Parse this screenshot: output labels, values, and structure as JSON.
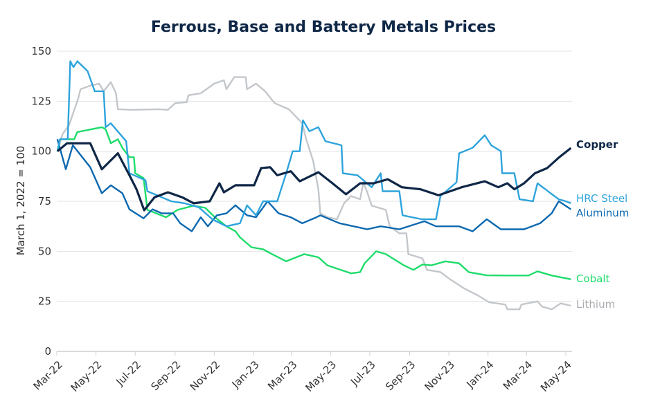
{
  "chart_data": {
    "type": "line",
    "title": "Ferrous, Base and Battery Metals Prices",
    "xlabel": "",
    "ylabel": "March 1, 2022 = 100",
    "ylim": [
      0,
      150
    ],
    "yticks": [
      "0",
      "25",
      "50",
      "75",
      "100",
      "125",
      "150"
    ],
    "xlim": [
      "2022-03-01",
      "2024-05-09"
    ],
    "xticks": [
      {
        "date": "2022-03-01",
        "label": "Mar-22"
      },
      {
        "date": "2022-05-01",
        "label": "May-22"
      },
      {
        "date": "2022-07-01",
        "label": "Jul-22"
      },
      {
        "date": "2022-09-01",
        "label": "Sep-22"
      },
      {
        "date": "2022-11-01",
        "label": "Nov-22"
      },
      {
        "date": "2023-01-01",
        "label": "Jan-23"
      },
      {
        "date": "2023-03-01",
        "label": "Mar-23"
      },
      {
        "date": "2023-05-01",
        "label": "May-23"
      },
      {
        "date": "2023-07-01",
        "label": "Jul-23"
      },
      {
        "date": "2023-09-01",
        "label": "Sep-23"
      },
      {
        "date": "2023-11-01",
        "label": "Nov-23"
      },
      {
        "date": "2024-01-01",
        "label": "Jan-24"
      },
      {
        "date": "2024-03-01",
        "label": "Mar-24"
      },
      {
        "date": "2024-05-01",
        "label": "May-24"
      }
    ],
    "grid": true,
    "legend": "direct labels at right end of lines",
    "series": [
      {
        "name": "Copper",
        "color": "#0f2747",
        "points": [
          [
            "2022-03-02",
            100
          ],
          [
            "2022-03-17",
            104
          ],
          [
            "2022-04-22",
            104
          ],
          [
            "2022-05-10",
            91
          ],
          [
            "2022-06-04",
            99
          ],
          [
            "2022-06-22",
            88
          ],
          [
            "2022-07-03",
            81
          ],
          [
            "2022-07-15",
            70.5
          ],
          [
            "2022-07-31",
            77
          ],
          [
            "2022-08-21",
            79.5
          ],
          [
            "2022-09-12",
            77
          ],
          [
            "2022-09-30",
            74
          ],
          [
            "2022-10-25",
            75
          ],
          [
            "2022-11-09",
            84
          ],
          [
            "2022-11-16",
            79.5
          ],
          [
            "2022-12-04",
            83
          ],
          [
            "2023-01-02",
            83
          ],
          [
            "2023-01-13",
            91.6
          ],
          [
            "2023-01-27",
            92
          ],
          [
            "2023-02-07",
            88
          ],
          [
            "2023-02-28",
            90
          ],
          [
            "2023-03-14",
            85
          ],
          [
            "2023-04-12",
            89.5
          ],
          [
            "2023-05-04",
            84
          ],
          [
            "2023-05-25",
            78.5
          ],
          [
            "2023-06-16",
            84
          ],
          [
            "2023-07-07",
            84
          ],
          [
            "2023-07-29",
            86
          ],
          [
            "2023-08-20",
            82
          ],
          [
            "2023-09-18",
            81
          ],
          [
            "2023-10-16",
            78
          ],
          [
            "2023-11-21",
            82
          ],
          [
            "2023-12-27",
            85
          ],
          [
            "2024-01-17",
            82
          ],
          [
            "2024-01-31",
            84
          ],
          [
            "2024-02-11",
            81
          ],
          [
            "2024-02-26",
            84
          ],
          [
            "2024-03-14",
            89
          ],
          [
            "2024-04-02",
            91.6
          ],
          [
            "2024-04-20",
            96.8
          ],
          [
            "2024-05-09",
            101.6
          ]
        ]
      },
      {
        "name": "HRC Steel",
        "color": "#2ea3dc",
        "points": [
          [
            "2022-03-02",
            100
          ],
          [
            "2022-03-06",
            106
          ],
          [
            "2022-03-18",
            106
          ],
          [
            "2022-03-22",
            145
          ],
          [
            "2022-03-27",
            142
          ],
          [
            "2022-04-02",
            145
          ],
          [
            "2022-04-18",
            140
          ],
          [
            "2022-04-29",
            130
          ],
          [
            "2022-05-13",
            130
          ],
          [
            "2022-05-16",
            112
          ],
          [
            "2022-05-24",
            114
          ],
          [
            "2022-06-17",
            105
          ],
          [
            "2022-06-22",
            89
          ],
          [
            "2022-07-17",
            85.5
          ],
          [
            "2022-07-20",
            80
          ],
          [
            "2022-08-07",
            77.6
          ],
          [
            "2022-08-26",
            75
          ],
          [
            "2022-09-16",
            74
          ],
          [
            "2022-10-08",
            72
          ],
          [
            "2022-10-29",
            66
          ],
          [
            "2022-11-20",
            62.5
          ],
          [
            "2022-12-11",
            64
          ],
          [
            "2022-12-22",
            73
          ],
          [
            "2023-01-05",
            68
          ],
          [
            "2023-01-16",
            75
          ],
          [
            "2023-02-07",
            75
          ],
          [
            "2023-02-21",
            89
          ],
          [
            "2023-03-03",
            100
          ],
          [
            "2023-03-14",
            100
          ],
          [
            "2023-03-19",
            115.5
          ],
          [
            "2023-03-29",
            110
          ],
          [
            "2023-04-12",
            112
          ],
          [
            "2023-04-23",
            105
          ],
          [
            "2023-05-18",
            103
          ],
          [
            "2023-05-20",
            89
          ],
          [
            "2023-06-12",
            88
          ],
          [
            "2023-07-04",
            82
          ],
          [
            "2023-07-18",
            89
          ],
          [
            "2023-07-21",
            80
          ],
          [
            "2023-08-16",
            80
          ],
          [
            "2023-08-21",
            68
          ],
          [
            "2023-09-20",
            66
          ],
          [
            "2023-10-12",
            66
          ],
          [
            "2023-10-19",
            77.6
          ],
          [
            "2023-11-13",
            84.5
          ],
          [
            "2023-11-17",
            99
          ],
          [
            "2023-12-08",
            101.7
          ],
          [
            "2023-12-27",
            108
          ],
          [
            "2024-01-06",
            103
          ],
          [
            "2024-01-21",
            100
          ],
          [
            "2024-01-23",
            89
          ],
          [
            "2024-02-11",
            89
          ],
          [
            "2024-02-19",
            76
          ],
          [
            "2024-03-11",
            75
          ],
          [
            "2024-03-18",
            84
          ],
          [
            "2024-04-05",
            79.6
          ],
          [
            "2024-04-20",
            76
          ],
          [
            "2024-05-01",
            75
          ],
          [
            "2024-05-09",
            74
          ]
        ]
      },
      {
        "name": "Aluminum",
        "color": "#0b68b0",
        "points": [
          [
            "2022-03-02",
            106
          ],
          [
            "2022-03-15",
            91
          ],
          [
            "2022-03-26",
            103
          ],
          [
            "2022-04-22",
            92
          ],
          [
            "2022-05-10",
            79
          ],
          [
            "2022-05-24",
            83
          ],
          [
            "2022-06-11",
            79
          ],
          [
            "2022-06-22",
            71
          ],
          [
            "2022-07-14",
            66.5
          ],
          [
            "2022-07-28",
            71
          ],
          [
            "2022-08-11",
            69
          ],
          [
            "2022-08-29",
            69
          ],
          [
            "2022-09-09",
            64
          ],
          [
            "2022-09-27",
            60
          ],
          [
            "2022-10-11",
            67
          ],
          [
            "2022-10-22",
            62.5
          ],
          [
            "2022-11-05",
            68
          ],
          [
            "2022-11-20",
            69
          ],
          [
            "2022-12-04",
            73
          ],
          [
            "2022-12-22",
            68
          ],
          [
            "2023-01-05",
            67
          ],
          [
            "2023-01-23",
            75
          ],
          [
            "2023-02-09",
            69
          ],
          [
            "2023-02-28",
            67
          ],
          [
            "2023-03-18",
            64
          ],
          [
            "2023-04-09",
            67
          ],
          [
            "2023-04-15",
            68
          ],
          [
            "2023-05-15",
            64
          ],
          [
            "2023-06-27",
            61
          ],
          [
            "2023-07-18",
            62.5
          ],
          [
            "2023-08-16",
            61
          ],
          [
            "2023-09-24",
            65
          ],
          [
            "2023-10-12",
            62.5
          ],
          [
            "2023-11-17",
            62.5
          ],
          [
            "2023-12-08",
            60
          ],
          [
            "2023-12-30",
            66
          ],
          [
            "2024-01-21",
            61
          ],
          [
            "2024-02-26",
            61
          ],
          [
            "2024-03-22",
            64
          ],
          [
            "2024-04-09",
            69
          ],
          [
            "2024-04-20",
            75
          ],
          [
            "2024-05-09",
            71
          ]
        ]
      },
      {
        "name": "Cobalt",
        "color": "#1ddc6a",
        "points": [
          [
            "2022-03-02",
            100
          ],
          [
            "2022-03-06",
            106
          ],
          [
            "2022-03-28",
            106
          ],
          [
            "2022-04-02",
            109.6
          ],
          [
            "2022-05-10",
            112
          ],
          [
            "2022-05-16",
            111
          ],
          [
            "2022-05-24",
            104
          ],
          [
            "2022-06-04",
            106
          ],
          [
            "2022-06-11",
            101.7
          ],
          [
            "2022-06-22",
            97
          ],
          [
            "2022-06-29",
            97
          ],
          [
            "2022-07-01",
            89
          ],
          [
            "2022-07-14",
            86.6
          ],
          [
            "2022-07-20",
            70.7
          ],
          [
            "2022-08-18",
            67
          ],
          [
            "2022-09-05",
            70.7
          ],
          [
            "2022-09-30",
            72.8
          ],
          [
            "2022-10-18",
            71.7
          ],
          [
            "2022-11-02",
            67
          ],
          [
            "2022-11-20",
            62.5
          ],
          [
            "2022-12-04",
            60
          ],
          [
            "2022-12-11",
            57
          ],
          [
            "2022-12-29",
            52
          ],
          [
            "2023-01-16",
            51
          ],
          [
            "2023-01-30",
            48.6
          ],
          [
            "2023-02-21",
            45
          ],
          [
            "2023-03-21",
            48.6
          ],
          [
            "2023-04-12",
            47
          ],
          [
            "2023-04-26",
            43
          ],
          [
            "2023-06-02",
            39
          ],
          [
            "2023-06-16",
            39.6
          ],
          [
            "2023-06-23",
            44
          ],
          [
            "2023-07-11",
            50
          ],
          [
            "2023-07-26",
            48.6
          ],
          [
            "2023-08-23",
            43
          ],
          [
            "2023-09-07",
            40.7
          ],
          [
            "2023-09-21",
            43.4
          ],
          [
            "2023-10-05",
            43
          ],
          [
            "2023-10-27",
            45
          ],
          [
            "2023-11-17",
            44
          ],
          [
            "2023-12-02",
            39.6
          ],
          [
            "2023-12-30",
            38
          ],
          [
            "2024-01-28",
            37.9
          ],
          [
            "2024-03-04",
            37.9
          ],
          [
            "2024-03-18",
            40
          ],
          [
            "2024-04-09",
            37.9
          ],
          [
            "2024-05-09",
            36
          ]
        ]
      },
      {
        "name": "Lithium",
        "color": "#c3c7cb",
        "label_color": "#a8acb0",
        "points": [
          [
            "2022-03-02",
            100
          ],
          [
            "2022-03-10",
            108.6
          ],
          [
            "2022-03-20",
            113
          ],
          [
            "2022-04-03",
            126
          ],
          [
            "2022-04-07",
            131
          ],
          [
            "2022-04-22",
            132.8
          ],
          [
            "2022-05-06",
            133.8
          ],
          [
            "2022-05-13",
            130
          ],
          [
            "2022-05-24",
            134.5
          ],
          [
            "2022-06-01",
            129
          ],
          [
            "2022-06-04",
            121
          ],
          [
            "2022-06-26",
            120.7
          ],
          [
            "2022-08-07",
            121
          ],
          [
            "2022-08-21",
            120.7
          ],
          [
            "2022-09-01",
            124
          ],
          [
            "2022-09-19",
            124.5
          ],
          [
            "2022-09-22",
            128
          ],
          [
            "2022-10-11",
            129
          ],
          [
            "2022-11-01",
            133.8
          ],
          [
            "2022-11-16",
            135.5
          ],
          [
            "2022-11-20",
            131
          ],
          [
            "2022-12-02",
            137
          ],
          [
            "2022-12-20",
            137
          ],
          [
            "2022-12-22",
            131
          ],
          [
            "2023-01-05",
            133.8
          ],
          [
            "2023-01-19",
            130
          ],
          [
            "2023-02-03",
            124
          ],
          [
            "2023-02-25",
            121
          ],
          [
            "2023-03-18",
            114
          ],
          [
            "2023-03-24",
            106
          ],
          [
            "2023-04-04",
            95
          ],
          [
            "2023-04-12",
            81
          ],
          [
            "2023-04-15",
            69
          ],
          [
            "2023-04-26",
            67
          ],
          [
            "2023-05-11",
            66
          ],
          [
            "2023-05-22",
            74
          ],
          [
            "2023-06-02",
            77.6
          ],
          [
            "2023-06-16",
            76
          ],
          [
            "2023-06-21",
            84.5
          ],
          [
            "2023-06-27",
            79.6
          ],
          [
            "2023-07-04",
            72.8
          ],
          [
            "2023-07-26",
            70.7
          ],
          [
            "2023-08-01",
            62.5
          ],
          [
            "2023-08-16",
            59
          ],
          [
            "2023-08-27",
            59
          ],
          [
            "2023-08-30",
            48.6
          ],
          [
            "2023-09-21",
            46.5
          ],
          [
            "2023-09-28",
            40.7
          ],
          [
            "2023-10-19",
            39.6
          ],
          [
            "2023-11-03",
            36
          ],
          [
            "2023-11-25",
            31.4
          ],
          [
            "2023-12-16",
            28
          ],
          [
            "2024-01-03",
            24.5
          ],
          [
            "2024-01-28",
            23.4
          ],
          [
            "2024-01-31",
            21
          ],
          [
            "2024-02-19",
            21
          ],
          [
            "2024-02-22",
            23.4
          ],
          [
            "2024-03-18",
            25
          ],
          [
            "2024-03-25",
            22.4
          ],
          [
            "2024-04-09",
            21
          ],
          [
            "2024-04-23",
            24
          ],
          [
            "2024-05-09",
            22.8
          ]
        ]
      }
    ]
  }
}
